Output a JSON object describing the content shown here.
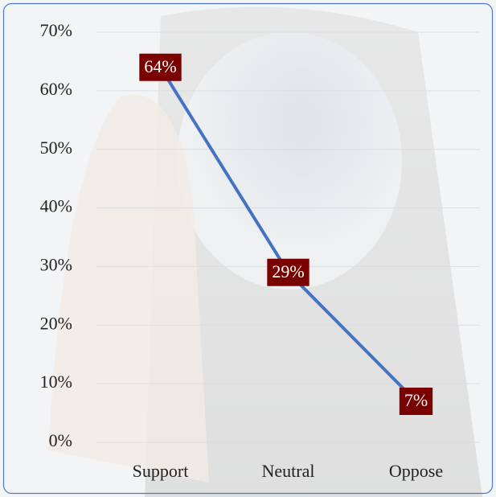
{
  "chart_data": {
    "type": "line",
    "categories": [
      "Support",
      "Neutral",
      "Oppose"
    ],
    "values": [
      64,
      29,
      7
    ],
    "value_labels": [
      "64%",
      "29%",
      "7%"
    ],
    "color": "#4472c4",
    "ylim": [
      0,
      70
    ],
    "yticks": [
      {
        "value": 0,
        "label": "0%"
      },
      {
        "value": 10,
        "label": "10%"
      },
      {
        "value": 20,
        "label": "20%"
      },
      {
        "value": 30,
        "label": "30%"
      },
      {
        "value": 40,
        "label": "40%"
      },
      {
        "value": 50,
        "label": "50%"
      },
      {
        "value": 60,
        "label": "60%"
      },
      {
        "value": 70,
        "label": "70%"
      }
    ],
    "grid": true
  }
}
